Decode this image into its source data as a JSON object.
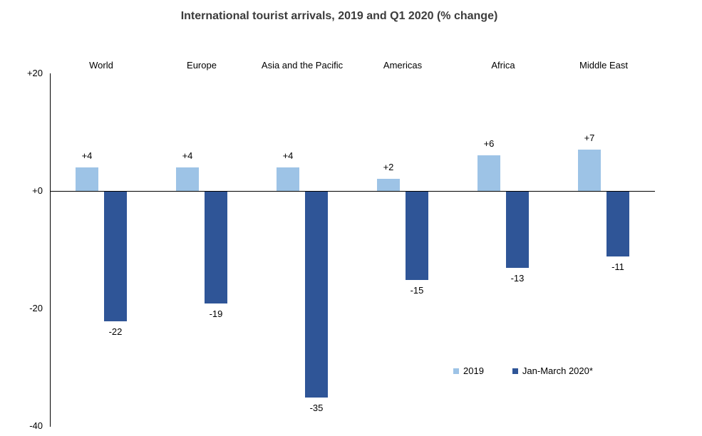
{
  "chart_data": {
    "type": "bar",
    "title": "International tourist arrivals, 2019 and Q1 2020 (% change)",
    "categories": [
      "World",
      "Europe",
      "Asia and the Pacific",
      "Americas",
      "Africa",
      "Middle East"
    ],
    "series": [
      {
        "name": "2019",
        "color": "#9DC3E6",
        "values": [
          4,
          4,
          4,
          2,
          6,
          7
        ],
        "labels": [
          "+4",
          "+4",
          "+4",
          "+2",
          "+6",
          "+7"
        ]
      },
      {
        "name": "Jan-March 2020*",
        "color": "#2F5597",
        "values": [
          -22,
          -19,
          -35,
          -15,
          -13,
          -11
        ],
        "labels": [
          "-22",
          "-19",
          "-35",
          "-15",
          "-13",
          "-11"
        ]
      }
    ],
    "ylim": [
      -40,
      20
    ],
    "yticks": [
      {
        "value": 20,
        "label": "+20"
      },
      {
        "value": 0,
        "label": "+0"
      },
      {
        "value": -20,
        "label": "-20"
      },
      {
        "value": -40,
        "label": "-40"
      }
    ],
    "grid": false,
    "legend_position": "bottom-right"
  }
}
